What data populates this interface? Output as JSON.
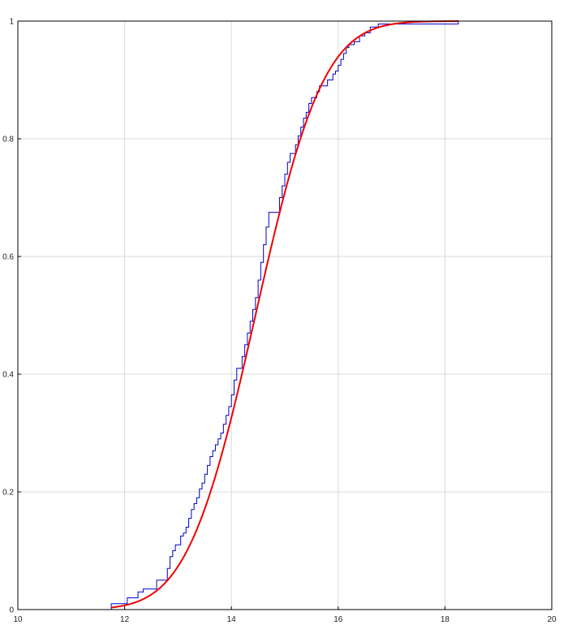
{
  "chart_data": {
    "type": "line",
    "title": "",
    "xlabel": "",
    "ylabel": "",
    "xlim": [
      10,
      20
    ],
    "ylim": [
      0,
      1
    ],
    "x_ticks": [
      10,
      12,
      14,
      16,
      18,
      20
    ],
    "y_ticks": [
      0,
      0.2,
      0.4,
      0.6,
      0.8,
      1
    ],
    "x_tick_labels": [
      "10",
      "12",
      "14",
      "16",
      "18",
      "20"
    ],
    "y_tick_labels": [
      "0",
      "0.2",
      "0.4",
      "0.6",
      "0.8",
      "1"
    ],
    "grid": true,
    "legend": "none",
    "series": [
      {
        "kind": "empirical-cdf-step",
        "color": "#0000cc",
        "x": [
          10.8,
          11.75,
          12.05,
          12.25,
          12.35,
          12.6,
          12.8,
          12.85,
          12.9,
          12.95,
          13.05,
          13.1,
          13.15,
          13.2,
          13.25,
          13.3,
          13.35,
          13.4,
          13.45,
          13.5,
          13.55,
          13.6,
          13.65,
          13.7,
          13.75,
          13.8,
          13.85,
          13.9,
          13.95,
          14.0,
          14.05,
          14.1,
          14.2,
          14.25,
          14.3,
          14.35,
          14.4,
          14.45,
          14.5,
          14.55,
          14.6,
          14.65,
          14.7,
          14.8,
          14.9,
          14.95,
          15.0,
          15.05,
          15.1,
          15.2,
          15.25,
          15.3,
          15.35,
          15.4,
          15.45,
          15.5,
          15.6,
          15.65,
          15.8,
          15.9,
          15.95,
          16.0,
          16.05,
          16.1,
          16.15,
          16.2,
          16.3,
          16.4,
          16.5,
          16.6,
          16.75,
          17.2,
          18.25
        ],
        "y": [
          0.0,
          0.01,
          0.02,
          0.03,
          0.035,
          0.05,
          0.07,
          0.09,
          0.1,
          0.11,
          0.125,
          0.13,
          0.14,
          0.155,
          0.17,
          0.18,
          0.19,
          0.205,
          0.215,
          0.23,
          0.245,
          0.26,
          0.27,
          0.28,
          0.29,
          0.3,
          0.315,
          0.33,
          0.345,
          0.365,
          0.39,
          0.41,
          0.43,
          0.45,
          0.47,
          0.49,
          0.51,
          0.53,
          0.56,
          0.59,
          0.62,
          0.65,
          0.675,
          0.675,
          0.7,
          0.72,
          0.74,
          0.76,
          0.775,
          0.79,
          0.805,
          0.82,
          0.835,
          0.845,
          0.86,
          0.87,
          0.88,
          0.89,
          0.9,
          0.91,
          0.915,
          0.925,
          0.935,
          0.945,
          0.955,
          0.96,
          0.965,
          0.975,
          0.98,
          0.99,
          0.995,
          0.995,
          1.0
        ]
      },
      {
        "kind": "fitted-normal-cdf",
        "color": "#ee0000",
        "mean": 14.45,
        "sd": 1.0,
        "x_range": [
          11.75,
          18.25
        ]
      }
    ]
  }
}
